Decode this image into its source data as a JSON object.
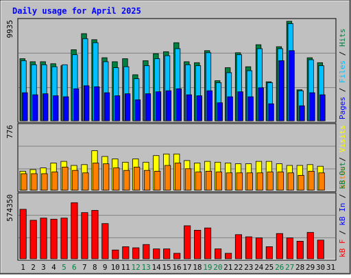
{
  "chart_data": {
    "type": "bar",
    "title": "Daily usage for April 2025",
    "categories": [
      "1",
      "2",
      "3",
      "4",
      "5",
      "6",
      "7",
      "8",
      "9",
      "10",
      "11",
      "12",
      "13",
      "14",
      "15",
      "16",
      "17",
      "18",
      "19",
      "20",
      "21",
      "22",
      "23",
      "24",
      "25",
      "26",
      "27",
      "28",
      "29",
      "30",
      "31"
    ],
    "weekend_days": [
      "5",
      "6",
      "12",
      "13",
      "19",
      "20",
      "26",
      "27"
    ],
    "panels": [
      {
        "name": "traffic",
        "y_max_label": "9935",
        "ylim": [
          0,
          9935
        ],
        "series": [
          {
            "name": "Hits",
            "color": "#008040",
            "values": [
              6200,
              5900,
              5900,
              5700,
              5500,
              7100,
              8700,
              8100,
              6300,
              5900,
              6200,
              4600,
              6000,
              6700,
              6900,
              7800,
              5900,
              5800,
              7000,
              4000,
              5300,
              6800,
              5400,
              7600,
              3900,
              7400,
              9935,
              3100,
              6300,
              5800,
              null
            ]
          },
          {
            "name": "Files",
            "color": "#00c0ff",
            "values": [
              6000,
              5600,
              5600,
              5400,
              5600,
              6600,
              8200,
              7800,
              5900,
              5300,
              5400,
              4200,
              5500,
              6200,
              6500,
              7200,
              5600,
              5500,
              6800,
              3800,
              4800,
              6600,
              5000,
              7200,
              3800,
              7200,
              9700,
              3000,
              6100,
              5500,
              null
            ]
          },
          {
            "name": "Pages",
            "color": "#0000ff",
            "values": [
              2800,
              2600,
              2700,
              2500,
              2400,
              3200,
              3500,
              3400,
              2800,
              2500,
              2700,
              2100,
              2700,
              2900,
              3000,
              3200,
              2600,
              2500,
              3000,
              1800,
              2400,
              2900,
              2400,
              3300,
              1700,
              6000,
              7000,
              1500,
              2800,
              2600,
              null
            ]
          }
        ]
      },
      {
        "name": "visitors",
        "y_max_label": "776",
        "ylim": [
          0,
          776
        ],
        "series": [
          {
            "name": "Visits",
            "color": "#ffff00",
            "values": [
              230,
              250,
              270,
              330,
              350,
              300,
              310,
              480,
              410,
              380,
              340,
              380,
              340,
              420,
              440,
              440,
              360,
              330,
              350,
              340,
              330,
              320,
              320,
              350,
              350,
              320,
              300,
              300,
              310,
              290,
              null
            ]
          },
          {
            "name": "Sites",
            "color": "#ff8000",
            "values": [
              200,
              200,
              200,
              220,
              280,
              240,
              210,
              330,
              320,
              270,
              240,
              280,
              240,
              230,
              300,
              330,
              260,
              220,
              230,
              220,
              210,
              210,
              210,
              210,
              220,
              220,
              210,
              180,
              230,
              210,
              null
            ]
          }
        ]
      },
      {
        "name": "kbytes",
        "y_max_label": "574350",
        "ylim": [
          0,
          574350
        ],
        "series": [
          {
            "name": "kB F",
            "color": "#ff0000",
            "values": [
              450000,
              350000,
              370000,
              360000,
              370000,
              510000,
              420000,
              440000,
              320000,
              80000,
              110000,
              100000,
              130000,
              90000,
              90000,
              50000,
              300000,
              260000,
              280000,
              90000,
              50000,
              220000,
              200000,
              190000,
              110000,
              230000,
              190000,
              160000,
              240000,
              170000,
              null
            ]
          }
        ],
        "legend_extra": [
          {
            "name": "kB In",
            "color": "#0000ff"
          },
          {
            "name": "kB Out",
            "color": "#008040"
          }
        ]
      }
    ],
    "legend_separator": " / ",
    "colors": {
      "background": "#c0c0c0",
      "plot_background": "#c0c0c0",
      "title": "#0000ff",
      "tick_weekday": "#000000",
      "tick_weekend": "#008040",
      "grid": "#808080"
    }
  }
}
